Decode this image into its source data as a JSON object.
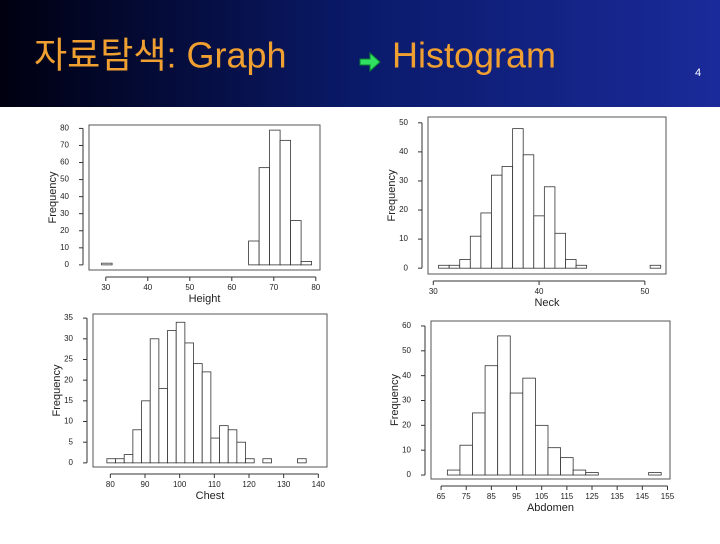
{
  "header": {
    "title_left": "자료탐색: Graph",
    "title_right": "Histogram",
    "page_number": 4
  },
  "chart_data": [
    {
      "type": "histogram",
      "xlabel": "Height",
      "ylabel": "Frequency",
      "color": "#ffffff",
      "bins": [
        29,
        31.5,
        34,
        36.5,
        39,
        41.5,
        44,
        46.5,
        49,
        51.5,
        54,
        56.5,
        59,
        61.5,
        64,
        66.5,
        69,
        71.5,
        74,
        76.5,
        79
      ],
      "values": [
        1,
        0,
        0,
        0,
        0,
        0,
        0,
        0,
        0,
        0,
        0,
        0,
        0,
        0,
        14,
        57,
        79,
        73,
        26,
        2
      ],
      "xlim": [
        26,
        81
      ],
      "xticks": [
        30,
        40,
        50,
        60,
        70,
        80
      ],
      "ylim": [
        -3,
        82
      ],
      "yticks": [
        0,
        10,
        20,
        30,
        40,
        50,
        60,
        70,
        80
      ]
    },
    {
      "type": "histogram",
      "xlabel": "Neck",
      "ylabel": "Frequency",
      "color": "#ffffff",
      "bins": [
        30.5,
        31.5,
        32.5,
        33.5,
        34.5,
        35.5,
        36.5,
        37.5,
        38.5,
        39.5,
        40.5,
        41.5,
        42.5,
        43.5,
        44.5,
        45.5,
        46.5,
        47.5,
        48.5,
        49.5,
        50.5,
        51.5
      ],
      "values": [
        1,
        1,
        3,
        11,
        19,
        32,
        35,
        48,
        39,
        18,
        28,
        12,
        3,
        1,
        0,
        0,
        0,
        0,
        0,
        0,
        1
      ],
      "xlim": [
        29.5,
        52
      ],
      "xticks": [
        30,
        40,
        50
      ],
      "ylim": [
        -2,
        52
      ],
      "yticks": [
        0,
        10,
        20,
        30,
        40,
        50
      ]
    },
    {
      "type": "histogram",
      "xlabel": "Chest",
      "ylabel": "Frequency",
      "color": "#ffffff",
      "bins": [
        79,
        81.5,
        84,
        86.5,
        89,
        91.5,
        94,
        96.5,
        99,
        101.5,
        104,
        106.5,
        109,
        111.5,
        114,
        116.5,
        119,
        121.5,
        124,
        126.5,
        129,
        131.5,
        134,
        136.5
      ],
      "values": [
        1,
        1,
        2,
        8,
        15,
        30,
        18,
        32,
        34,
        29,
        24,
        22,
        6,
        9,
        8,
        5,
        1,
        0,
        1,
        0,
        0,
        0,
        1
      ],
      "xlim": [
        75,
        142.5
      ],
      "xticks": [
        80,
        90,
        100,
        110,
        120,
        130,
        140
      ],
      "ylim": [
        -1,
        36
      ],
      "yticks": [
        0,
        5,
        10,
        15,
        20,
        25,
        30,
        35
      ]
    },
    {
      "type": "histogram",
      "xlabel": "Abdomen",
      "ylabel": "Frequency",
      "color": "#ffffff",
      "bins": [
        67.5,
        72.5,
        77.5,
        82.5,
        87.5,
        92.5,
        97.5,
        102.5,
        107.5,
        112.5,
        117.5,
        122.5,
        127.5,
        132.5,
        137.5,
        142.5,
        147.5,
        152.5
      ],
      "values": [
        2,
        12,
        25,
        44,
        56,
        33,
        39,
        20,
        11,
        7,
        2,
        1,
        0,
        0,
        0,
        0,
        1
      ],
      "xlim": [
        61,
        156
      ],
      "xticks": [
        65,
        75,
        85,
        95,
        105,
        115,
        125,
        135,
        145,
        155
      ],
      "ylim": [
        -1.6,
        62
      ],
      "yticks": [
        0,
        10,
        20,
        30,
        40,
        50,
        60
      ]
    }
  ]
}
